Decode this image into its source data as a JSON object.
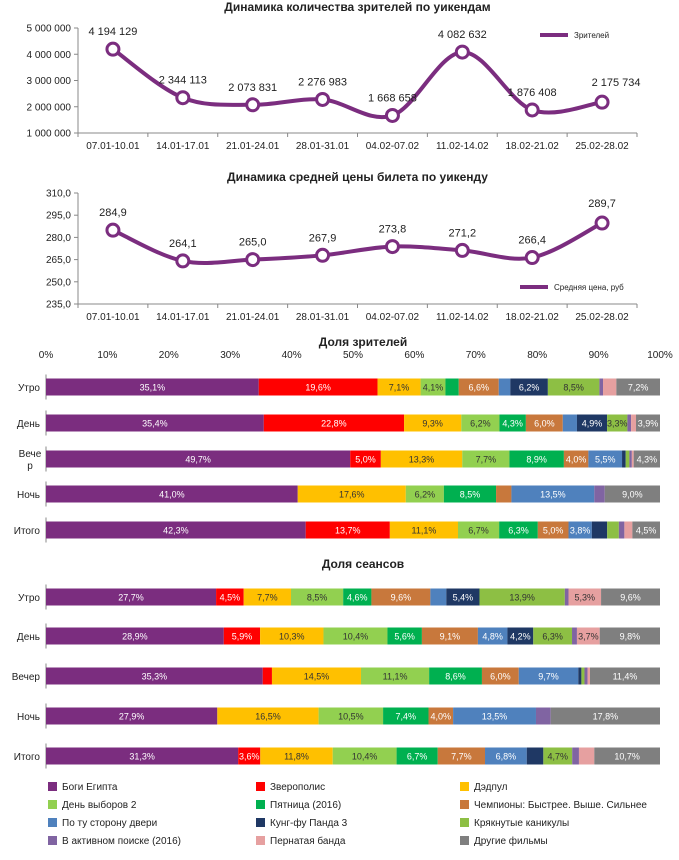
{
  "colors": {
    "line": "#7B2D7F",
    "axis": "#888888",
    "grid": "#BFBFBF",
    "films": [
      "#7B2D7F",
      "#FF0000",
      "#FFC000",
      "#92D050",
      "#00B050",
      "#C8783C",
      "#4F81BD",
      "#1F3864",
      "#8DBF44",
      "#8064A2",
      "#E6A0A0",
      "#7F7F7F"
    ],
    "label_light": [
      "#FFFFFF",
      "#FFFFFF",
      "#333333",
      "#333333",
      "#FFFFFF",
      "#FFFFFF",
      "#FFFFFF",
      "#FFFFFF",
      "#333333",
      "#FFFFFF",
      "#333333",
      "#FFFFFF"
    ]
  },
  "chart_data": [
    {
      "type": "line",
      "title": "Динамика количества зрителей по уикендам",
      "categories": [
        "07.01-10.01",
        "14.01-17.01",
        "21.01-24.01",
        "28.01-31.01",
        "04.02-07.02",
        "11.02-14.02",
        "18.02-21.02",
        "25.02-28.02"
      ],
      "values": [
        4194129,
        2344113,
        2073831,
        2276983,
        1668658,
        4082632,
        1876408,
        2175734
      ],
      "value_labels": [
        "4 194 129",
        "2 344 113",
        "2 073 831",
        "2 276 983",
        "1 668 658",
        "4 082 632",
        "1 876 408",
        "2 175 734"
      ],
      "ylim": [
        1000000,
        5000000
      ],
      "yticks": [
        1000000,
        2000000,
        3000000,
        4000000,
        5000000
      ],
      "ytick_labels": [
        "1 000 000",
        "2 000 000",
        "3 000 000",
        "4 000 000",
        "5 000 000"
      ],
      "legend": {
        "label": "Зрителей",
        "position": "top-right"
      }
    },
    {
      "type": "line",
      "title": "Динамика средней цены билета по уикенду",
      "categories": [
        "07.01-10.01",
        "14.01-17.01",
        "21.01-24.01",
        "28.01-31.01",
        "04.02-07.02",
        "11.02-14.02",
        "18.02-21.02",
        "25.02-28.02"
      ],
      "values": [
        284.9,
        264.1,
        265.0,
        267.9,
        273.8,
        271.2,
        266.4,
        289.7
      ],
      "value_labels": [
        "284,9",
        "264,1",
        "265,0",
        "267,9",
        "273,8",
        "271,2",
        "266,4",
        "289,7"
      ],
      "ylim": [
        235,
        310
      ],
      "yticks": [
        235,
        250,
        265,
        280,
        295,
        310
      ],
      "ytick_labels": [
        "235,0",
        "250,0",
        "265,0",
        "280,0",
        "295,0",
        "310,0"
      ],
      "legend": {
        "label": "Средняя цена, руб",
        "position": "bottom-right"
      }
    },
    {
      "type": "bar",
      "stacked": "percent",
      "orientation": "horizontal",
      "title": "Доля зрителей",
      "xlim": [
        0,
        100
      ],
      "xtick_labels": [
        "0%",
        "10%",
        "20%",
        "30%",
        "40%",
        "50%",
        "60%",
        "70%",
        "80%",
        "90%",
        "100%"
      ],
      "categories": [
        "Утро",
        "День",
        "Вечер",
        "Ночь",
        "Итого"
      ],
      "series_values": [
        [
          35.1,
          19.6,
          7.1,
          4.1,
          2.2,
          6.6,
          1.9,
          6.2,
          8.5,
          0.6,
          2.2,
          7.2
        ],
        [
          35.4,
          22.8,
          9.3,
          6.2,
          4.3,
          6.0,
          2.3,
          4.9,
          3.3,
          0.6,
          0.8,
          3.9
        ],
        [
          49.7,
          5.0,
          13.3,
          7.7,
          8.9,
          4.0,
          5.5,
          0.6,
          0.6,
          0.4,
          0.3,
          4.3
        ],
        [
          41.0,
          0,
          17.6,
          6.2,
          8.5,
          2.5,
          13.5,
          0,
          0,
          1.7,
          0,
          9.0
        ],
        [
          42.3,
          13.7,
          11.1,
          6.7,
          6.3,
          5.0,
          3.8,
          2.5,
          1.9,
          0.9,
          1.3,
          4.5
        ]
      ],
      "segment_labels": [
        [
          "35,1%",
          "19,6%",
          "7,1%",
          "4,1%",
          "",
          "6,6%",
          "",
          "6,2%",
          "8,5%",
          "",
          "",
          "7,2%"
        ],
        [
          "35,4%",
          "22,8%",
          "9,3%",
          "6,2%",
          "4,3%",
          "6,0%",
          "",
          "4,9%",
          "3,3%",
          "",
          "",
          "3,9%"
        ],
        [
          "49,7%",
          "5,0%",
          "13,3%",
          "7,7%",
          "8,9%",
          "4,0%",
          "5,5%",
          "",
          "",
          "",
          "",
          "4,3%"
        ],
        [
          "41,0%",
          "",
          "17,6%",
          "6,2%",
          "8,5%",
          "",
          "13,5%",
          "",
          "",
          "",
          "",
          "9,0%"
        ],
        [
          "42,3%",
          "13,7%",
          "11,1%",
          "6,7%",
          "6,3%",
          "5,0%",
          "3,8%",
          "",
          "",
          "",
          "",
          "4,5%"
        ]
      ]
    },
    {
      "type": "bar",
      "stacked": "percent",
      "orientation": "horizontal",
      "title": "Доля сеансов",
      "xlim": [
        0,
        100
      ],
      "categories": [
        "Утро",
        "День",
        "Вечер",
        "Ночь",
        "Итого"
      ],
      "series_values": [
        [
          27.7,
          4.5,
          7.7,
          8.5,
          4.6,
          9.6,
          2.6,
          5.4,
          13.9,
          0.6,
          5.3,
          9.6
        ],
        [
          28.9,
          5.9,
          10.3,
          10.4,
          5.6,
          9.1,
          4.8,
          4.2,
          6.3,
          0.8,
          3.7,
          9.8
        ],
        [
          35.3,
          1.5,
          14.5,
          11.1,
          8.6,
          6.0,
          9.7,
          0.5,
          0.5,
          0.5,
          0.4,
          11.4
        ],
        [
          27.9,
          0,
          16.5,
          10.5,
          7.4,
          4.0,
          13.5,
          0,
          0,
          2.4,
          0,
          17.8
        ],
        [
          31.3,
          3.6,
          11.8,
          10.4,
          6.7,
          7.7,
          6.8,
          2.7,
          4.7,
          1.1,
          2.5,
          10.7
        ]
      ],
      "segment_labels": [
        [
          "27,7%",
          "4,5%",
          "7,7%",
          "8,5%",
          "4,6%",
          "9,6%",
          "",
          "5,4%",
          "13,9%",
          "",
          "5,3%",
          "9,6%"
        ],
        [
          "28,9%",
          "5,9%",
          "10,3%",
          "10,4%",
          "5,6%",
          "9,1%",
          "4,8%",
          "4,2%",
          "6,3%",
          "",
          "3,7%",
          "9,8%"
        ],
        [
          "35,3%",
          "",
          "14,5%",
          "11,1%",
          "8,6%",
          "6,0%",
          "9,7%",
          "",
          "",
          "",
          "",
          "11,4%"
        ],
        [
          "27,9%",
          "",
          "16,5%",
          "10,5%",
          "7,4%",
          "4,0%",
          "13,5%",
          "",
          "",
          "",
          "",
          "17,8%"
        ],
        [
          "31,3%",
          "3,6%",
          "11,8%",
          "10,4%",
          "6,7%",
          "7,7%",
          "6,8%",
          "",
          "4,7%",
          "",
          "",
          "10,7%"
        ]
      ]
    }
  ],
  "legend_films": [
    "Боги Египта",
    "Зверополис",
    "Дэдпул",
    "День выборов 2",
    "Пятница (2016)",
    "Чемпионы: Быстрее. Выше. Сильнее",
    "По ту сторону двери",
    "Кунг-фу Панда 3",
    "Крякнутые каникулы",
    "В активном поиске (2016)",
    "Пернатая банда",
    "Другие фильмы"
  ]
}
